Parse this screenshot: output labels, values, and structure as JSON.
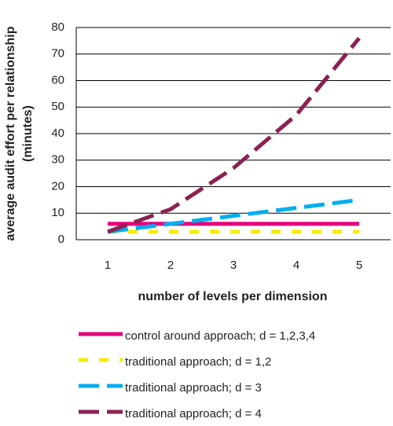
{
  "chart_data": {
    "type": "line",
    "ylabel": [
      "average audit effort per relationship",
      "(minutes)"
    ],
    "xlabel": "number of levels per dimension",
    "categories": [
      "1",
      "2",
      "3",
      "4",
      "5"
    ],
    "ylim": [
      0,
      80
    ],
    "yticks": [
      0,
      10,
      20,
      30,
      40,
      50,
      60,
      70,
      80
    ],
    "grid": true,
    "legend": "bottom",
    "series": [
      {
        "name": "control around approach; d = 1,2,3,4",
        "color": "#e6007e",
        "dash": "solid",
        "values": [
          6,
          6,
          6,
          6,
          6
        ]
      },
      {
        "name": "traditional approach; d = 1,2",
        "color": "#f5ec00",
        "dash": "short",
        "values": [
          3,
          3,
          3,
          3,
          3
        ]
      },
      {
        "name": "traditional approach; d = 3",
        "color": "#00aeef",
        "dash": "long",
        "values": [
          3,
          6,
          9,
          12,
          15
        ]
      },
      {
        "name": "traditional approach; d = 4",
        "color": "#8b2252",
        "dash": "long",
        "values": [
          3,
          11.5,
          27,
          47,
          76
        ]
      }
    ]
  }
}
